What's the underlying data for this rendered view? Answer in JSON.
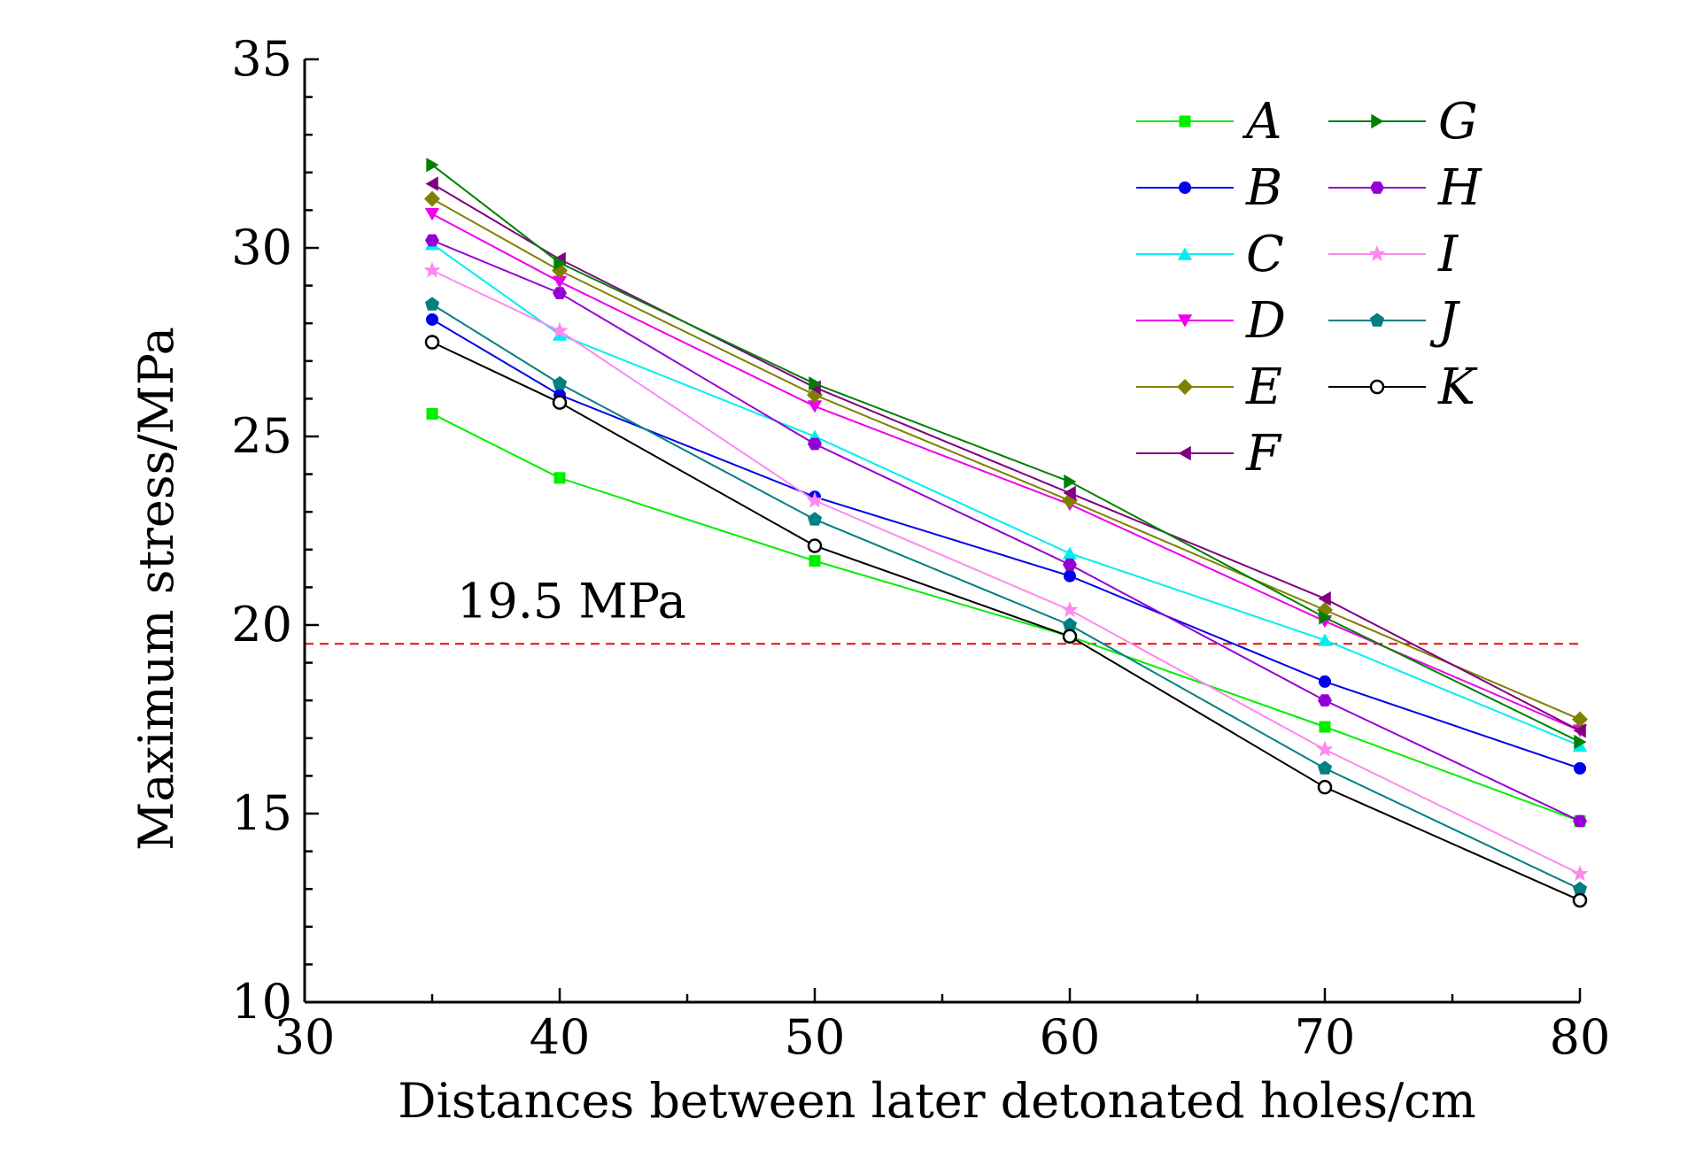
{
  "chart_data": {
    "type": "line",
    "xlabel": "Distances between later detonated holes/cm",
    "ylabel": "Maximum stress/MPa",
    "xlim": [
      30,
      80
    ],
    "ylim": [
      10,
      35
    ],
    "xticks": [
      30,
      40,
      50,
      60,
      70,
      80
    ],
    "yticks": [
      10,
      15,
      20,
      25,
      30,
      35
    ],
    "xtick_labels": [
      "30",
      "40",
      "50",
      "60",
      "70",
      "80"
    ],
    "ytick_labels": [
      "10",
      "15",
      "20",
      "25",
      "30",
      "35"
    ],
    "grid": false,
    "legend_position": "top-right",
    "x": [
      35,
      40,
      50,
      60,
      70,
      80
    ],
    "series": [
      {
        "name": "A",
        "color": "#00ee00",
        "marker": "square",
        "values": [
          25.6,
          23.9,
          21.7,
          19.7,
          17.3,
          14.8
        ]
      },
      {
        "name": "B",
        "color": "#0000ee",
        "marker": "circle",
        "values": [
          28.1,
          26.1,
          23.4,
          21.3,
          18.5,
          16.2
        ]
      },
      {
        "name": "C",
        "color": "#00eeee",
        "marker": "triangle-up",
        "values": [
          30.1,
          27.7,
          25.0,
          21.9,
          19.6,
          16.8
        ]
      },
      {
        "name": "D",
        "color": "#ee00ee",
        "marker": "triangle-down",
        "values": [
          30.9,
          29.1,
          25.8,
          23.2,
          20.1,
          17.2
        ]
      },
      {
        "name": "E",
        "color": "#808000",
        "marker": "diamond",
        "values": [
          31.3,
          29.4,
          26.1,
          23.3,
          20.4,
          17.5
        ]
      },
      {
        "name": "F",
        "color": "#800080",
        "marker": "triangle-left",
        "values": [
          31.7,
          29.7,
          26.3,
          23.5,
          20.7,
          17.2
        ]
      },
      {
        "name": "G",
        "color": "#008000",
        "marker": "triangle-right",
        "values": [
          32.2,
          29.6,
          26.4,
          23.8,
          20.2,
          16.9
        ]
      },
      {
        "name": "H",
        "color": "#9400d3",
        "marker": "hexagon",
        "values": [
          30.2,
          28.8,
          24.8,
          21.6,
          18.0,
          14.8
        ]
      },
      {
        "name": "I",
        "color": "#ff88ee",
        "marker": "star",
        "values": [
          29.4,
          27.8,
          23.3,
          20.4,
          16.7,
          13.4
        ]
      },
      {
        "name": "J",
        "color": "#008080",
        "marker": "pentagon",
        "values": [
          28.5,
          26.4,
          22.8,
          20.0,
          16.2,
          13.0
        ]
      },
      {
        "name": "K",
        "color": "#000000",
        "marker": "open-circle",
        "values": [
          27.5,
          25.9,
          22.1,
          19.7,
          15.7,
          12.7
        ]
      }
    ],
    "reference_line": {
      "value": 19.5,
      "label": "19.5 MPa",
      "color": "#ff0000",
      "style": "dashed"
    }
  }
}
